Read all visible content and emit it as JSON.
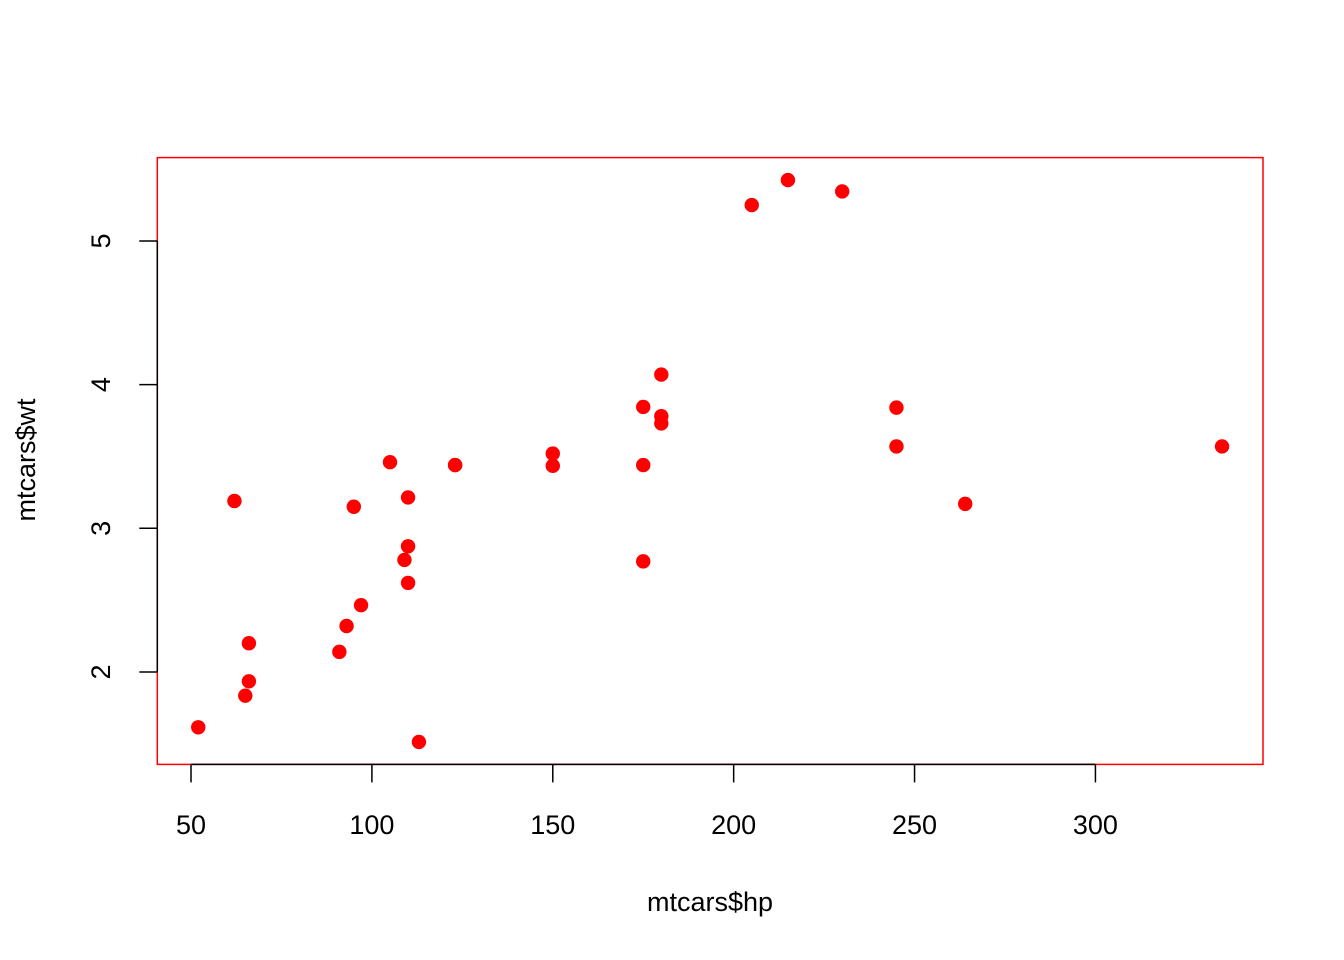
{
  "chart_data": {
    "type": "scatter",
    "title": "",
    "xlabel": "mtcars$hp",
    "ylabel": "mtcars$wt",
    "xlim": [
      40.68,
      346.32
    ],
    "ylim": [
      1.3566,
      5.5804
    ],
    "xticks": [
      50,
      100,
      150,
      200,
      250,
      300
    ],
    "yticks": [
      2,
      3,
      4,
      5
    ],
    "grid": false,
    "point_color": "#FF0000",
    "box_color": "#FF0000",
    "x": [
      110,
      110,
      93,
      110,
      175,
      105,
      245,
      62,
      95,
      123,
      123,
      180,
      180,
      180,
      205,
      215,
      230,
      66,
      52,
      65,
      97,
      150,
      150,
      245,
      175,
      66,
      91,
      113,
      264,
      175,
      335,
      109
    ],
    "y": [
      2.62,
      2.875,
      2.32,
      3.215,
      3.44,
      3.46,
      3.57,
      3.19,
      3.15,
      3.44,
      3.44,
      4.07,
      3.73,
      3.78,
      5.25,
      5.424,
      5.345,
      2.2,
      1.615,
      1.835,
      2.465,
      3.52,
      3.435,
      3.84,
      3.845,
      1.935,
      2.14,
      1.513,
      3.17,
      2.77,
      3.57,
      2.78
    ]
  }
}
